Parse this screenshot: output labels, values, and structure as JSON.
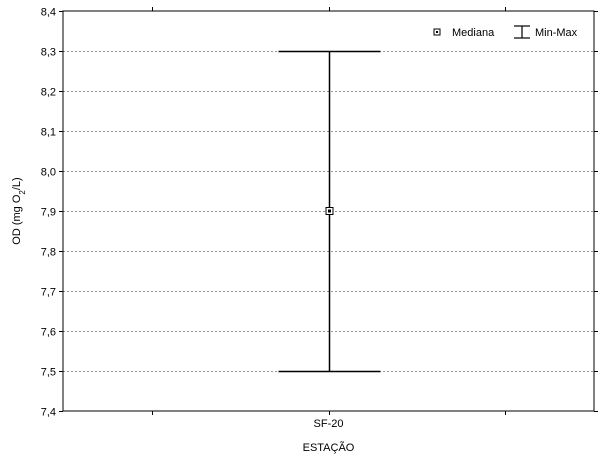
{
  "chart_data": {
    "type": "boxplot",
    "categories": [
      "SF-20"
    ],
    "series": [
      {
        "category": "SF-20",
        "median": 7.9,
        "min": 7.5,
        "max": 8.3
      }
    ],
    "xlabel": "ESTAÇÃO",
    "ylabel": {
      "pre": "OD (mg O",
      "sub": "2",
      "post": "/L)"
    },
    "ylim": [
      7.4,
      8.4
    ],
    "yticks": [
      7.4,
      7.5,
      7.6,
      7.7,
      7.8,
      7.9,
      8.0,
      8.1,
      8.2,
      8.3,
      8.4
    ],
    "ytick_labels": [
      "7,4",
      "7,5",
      "7,6",
      "7,7",
      "7,8",
      "7,9",
      "8,0",
      "8,1",
      "8,2",
      "8,3",
      "8,4"
    ],
    "grid": "horizontal dashed",
    "legend": {
      "position": "top-right",
      "entries": [
        {
          "label": "Mediana",
          "marker": "square"
        },
        {
          "label": "Min-Max",
          "marker": "whisker"
        }
      ]
    }
  }
}
